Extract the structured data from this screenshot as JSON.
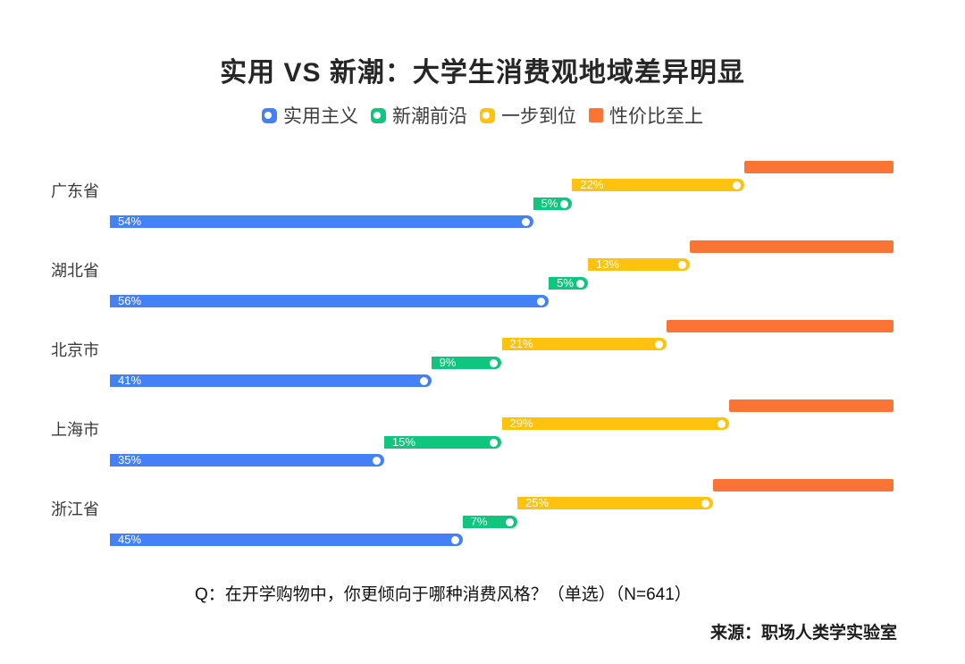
{
  "title": "实用 VS 新潮：大学生消费观地域差异明显",
  "legend": {
    "items": [
      {
        "label": "实用主义",
        "color": "#4480F6",
        "icon": "dot-pill"
      },
      {
        "label": "新潮前沿",
        "color": "#10C57D",
        "icon": "dot-pill"
      },
      {
        "label": "一步到位",
        "color": "#FEC20F",
        "icon": "dot-pill"
      },
      {
        "label": "性价比至上",
        "color": "#FA7535",
        "icon": "square"
      }
    ]
  },
  "footer": {
    "question": "Q：在开学购物中，你更倾向于哪种消费风格？（单选）（N=641）",
    "source": "来源：职场人类学实验室"
  },
  "chart_data": {
    "type": "bar",
    "variant": "horizontal-cascading-stacked",
    "title": "实用 VS 新潮：大学生消费观地域差异明显",
    "categories": [
      "广东省",
      "湖北省",
      "北京市",
      "上海市",
      "浙江省"
    ],
    "series": [
      {
        "key": "practical",
        "name": "实用主义",
        "color": "#4480F6",
        "values": [
          54,
          56,
          41,
          35,
          45
        ],
        "value_labels_shown": true
      },
      {
        "key": "trendy",
        "name": "新潮前沿",
        "color": "#10C57D",
        "values": [
          5,
          5,
          9,
          15,
          7
        ],
        "value_labels_shown": true
      },
      {
        "key": "one-step",
        "name": "一步到位",
        "color": "#FEC20F",
        "values": [
          22,
          13,
          21,
          29,
          25
        ],
        "value_labels_shown": true
      },
      {
        "key": "value-first",
        "name": "性价比至上",
        "color": "#FA7535",
        "values": [
          19,
          26,
          29,
          21,
          23
        ],
        "value_labels_shown": false
      }
    ],
    "unit": "%",
    "xlim": [
      0,
      100
    ],
    "legend_position": "top",
    "grid": false
  }
}
